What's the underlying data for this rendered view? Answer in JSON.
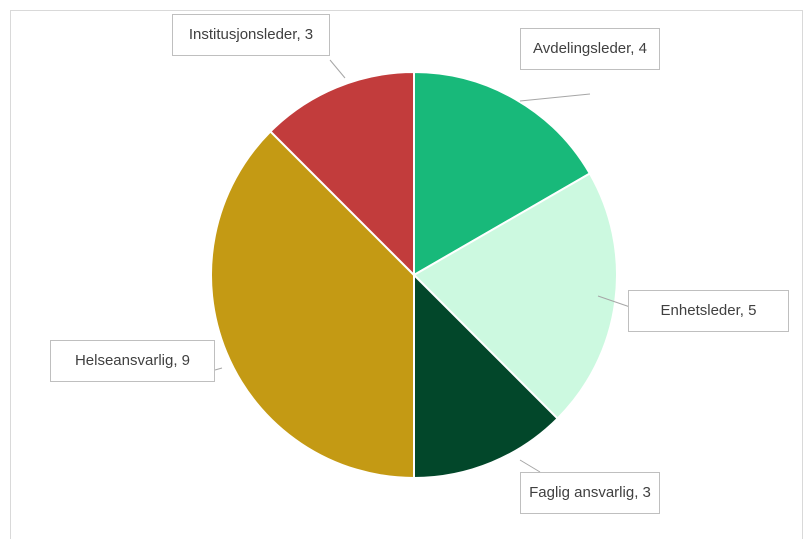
{
  "chart_data": {
    "type": "pie",
    "categories": [
      "Avdelingsleder",
      "Enhetsleder",
      "Faglig ansvarlig",
      "Helseansvarlig",
      "Institusjonsleder"
    ],
    "values": [
      4,
      5,
      3,
      9,
      3
    ],
    "value_labels": [
      ", 4",
      ", 5",
      ", 3",
      ", 9",
      ", 3"
    ],
    "colors": [
      "#18b97a",
      "#ccf9e0",
      "#02472a",
      "#c49a14",
      "#c23c3c"
    ]
  }
}
